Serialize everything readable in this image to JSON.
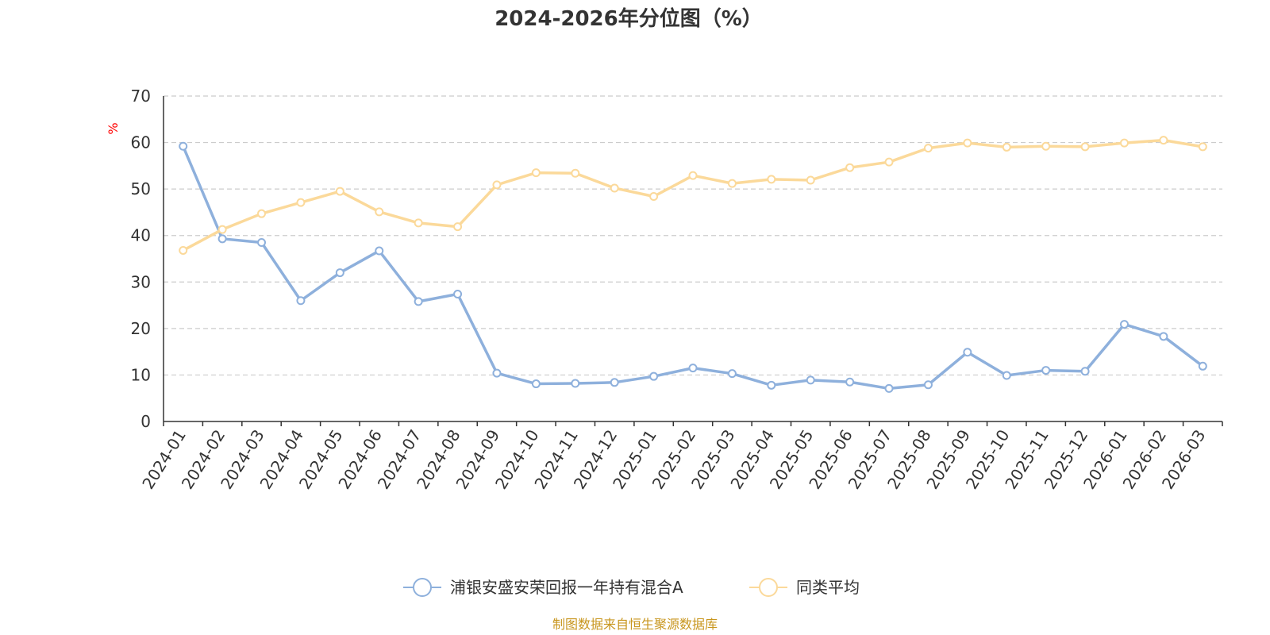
{
  "chart_data": {
    "type": "line",
    "title": "2024-2026年分位图（%）",
    "ylabel": "%",
    "xlabel": "",
    "ylim": [
      0,
      70
    ],
    "yticks": [
      0,
      10,
      20,
      30,
      40,
      50,
      60,
      70
    ],
    "grid": true,
    "legend_position": "bottom-center",
    "categories": [
      "2024-01",
      "2024-02",
      "2024-03",
      "2024-04",
      "2024-05",
      "2024-06",
      "2024-07",
      "2024-08",
      "2024-09",
      "2024-10",
      "2024-11",
      "2024-12",
      "2025-01",
      "2025-02",
      "2025-03",
      "2025-04",
      "2025-05",
      "2025-06",
      "2025-07",
      "2025-08",
      "2025-09",
      "2025-10",
      "2025-11",
      "2025-12",
      "2026-01",
      "2026-02",
      "2026-03"
    ],
    "series": [
      {
        "name": "浦银安盛安荣回报一年持有混合A",
        "color": "#8eb0dc",
        "values": [
          59.2,
          39.3,
          38.5,
          26.0,
          32.0,
          36.7,
          25.8,
          27.4,
          10.4,
          8.1,
          8.2,
          8.4,
          9.7,
          11.5,
          10.3,
          7.8,
          8.9,
          8.5,
          7.1,
          7.9,
          14.9,
          9.9,
          11.0,
          10.8,
          20.9,
          18.3,
          11.9
        ]
      },
      {
        "name": "同类平均",
        "color": "#fbd99a",
        "values": [
          36.8,
          41.3,
          44.7,
          47.1,
          49.5,
          45.1,
          42.7,
          41.9,
          50.9,
          53.5,
          53.4,
          50.2,
          48.4,
          52.9,
          51.2,
          52.1,
          51.9,
          54.6,
          55.8,
          58.8,
          59.9,
          59.0,
          59.2,
          59.1,
          59.9,
          60.5,
          59.1
        ]
      }
    ]
  },
  "source_note": "制图数据来自恒生聚源数据库"
}
